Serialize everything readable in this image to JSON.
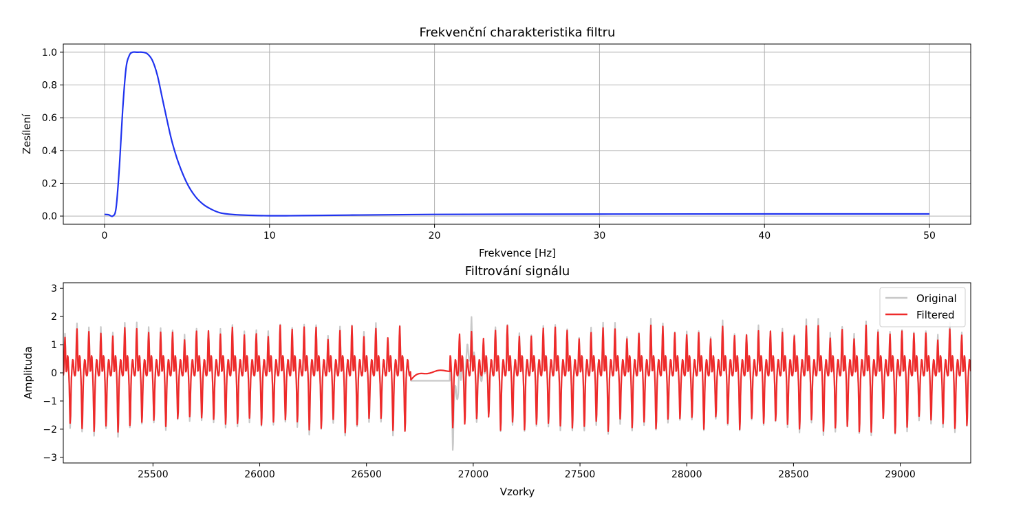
{
  "chart_data": [
    {
      "type": "line",
      "title": "Frekvenční charakteristika filtru",
      "xlabel": "Frekvence [Hz]",
      "ylabel": "Zesílení",
      "xlim": [
        -2.5,
        52.5
      ],
      "ylim": [
        -0.05,
        1.05
      ],
      "grid": true,
      "legend": "none",
      "xticks": [
        0,
        10,
        20,
        30,
        40,
        50
      ],
      "xtick_labels": [
        "0",
        "10",
        "20",
        "30",
        "40",
        "50"
      ],
      "yticks": [
        0.0,
        0.2,
        0.4,
        0.6,
        0.8,
        1.0
      ],
      "ytick_labels": [
        "0.0",
        "0.2",
        "0.4",
        "0.6",
        "0.8",
        "1.0"
      ],
      "series": [
        {
          "color": "#1f33ef",
          "x": [
            0,
            0.25,
            0.5,
            0.7,
            0.9,
            1.1,
            1.3,
            1.5,
            1.7,
            2.0,
            2.3,
            2.6,
            2.9,
            3.2,
            3.5,
            3.8,
            4.1,
            4.5,
            5,
            5.5,
            6,
            6.5,
            7,
            7.5,
            8,
            9,
            10,
            11,
            12,
            15,
            20,
            30,
            40,
            50
          ],
          "y": [
            0.01,
            0.008,
            0.0,
            0.05,
            0.3,
            0.65,
            0.9,
            0.98,
            1.0,
            1.0,
            1.0,
            0.99,
            0.95,
            0.86,
            0.72,
            0.58,
            0.45,
            0.32,
            0.2,
            0.12,
            0.07,
            0.04,
            0.02,
            0.012,
            0.008,
            0.004,
            0.002,
            0.002,
            0.003,
            0.006,
            0.01,
            0.012,
            0.013,
            0.013
          ]
        }
      ]
    },
    {
      "type": "line",
      "title": "Filtrování signálu",
      "xlabel": "Vzorky",
      "ylabel": "Amplituda",
      "xlim": [
        25080,
        29330
      ],
      "ylim": [
        -3.2,
        3.2
      ],
      "grid": false,
      "legend": "top-right",
      "xticks": [
        25500,
        26000,
        26500,
        27000,
        27500,
        28000,
        28500,
        29000
      ],
      "xtick_labels": [
        "25500",
        "26000",
        "26500",
        "27000",
        "27500",
        "28000",
        "28500",
        "29000"
      ],
      "yticks": [
        -3,
        -2,
        -1,
        0,
        1,
        2,
        3
      ],
      "ytick_labels": [
        "−3",
        "−2",
        "−1",
        "0",
        "1",
        "2",
        "3"
      ],
      "signal": {
        "cycle_samples": 56,
        "gap_start": 26708,
        "gap_end": 26890,
        "flat_level": -0.28
      },
      "series": [
        {
          "name": "Original",
          "color": "#c8c8c8"
        },
        {
          "name": "Filtered",
          "color": "#ee2a2a"
        }
      ]
    }
  ]
}
